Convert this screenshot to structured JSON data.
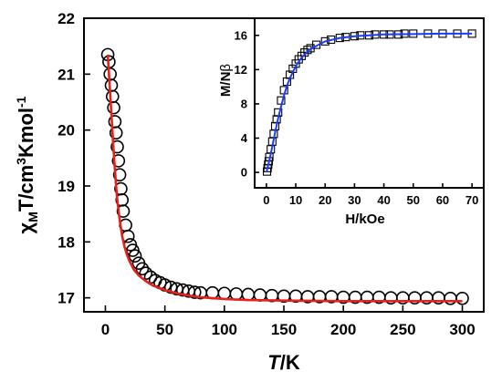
{
  "chart_data": [
    {
      "type": "scatter",
      "xlabel": {
        "italic": "T",
        "rest": "/K"
      },
      "ylabel": {
        "chi": "χ",
        "sub": "M",
        "mid": "T/cm",
        "sup3": "3",
        "mid2": "Kmol",
        "supm1": "-1"
      },
      "xlim": [
        -18,
        318
      ],
      "ylim": [
        16.75,
        22
      ],
      "xticks": [
        0,
        50,
        100,
        150,
        200,
        250,
        300
      ],
      "yticks": [
        17,
        18,
        19,
        20,
        21,
        22
      ],
      "grid": false,
      "series": [
        {
          "marker": "open-circle",
          "color": "#000000",
          "points": [
            [
              2,
              21.35
            ],
            [
              3,
              21.22
            ],
            [
              4,
              21.0
            ],
            [
              5,
              20.8
            ],
            [
              6,
              20.6
            ],
            [
              7,
              20.4
            ],
            [
              8,
              20.15
            ],
            [
              9,
              19.95
            ],
            [
              10,
              19.7
            ],
            [
              11,
              19.45
            ],
            [
              12,
              19.2
            ],
            [
              13,
              18.95
            ],
            [
              14,
              18.75
            ],
            [
              15,
              18.55
            ],
            [
              17,
              18.3
            ],
            [
              19,
              18.1
            ],
            [
              21,
              17.95
            ],
            [
              23,
              17.85
            ],
            [
              25,
              17.75
            ],
            [
              28,
              17.62
            ],
            [
              31,
              17.52
            ],
            [
              34,
              17.44
            ],
            [
              38,
              17.37
            ],
            [
              42,
              17.31
            ],
            [
              46,
              17.27
            ],
            [
              50,
              17.23
            ],
            [
              55,
              17.19
            ],
            [
              60,
              17.16
            ],
            [
              65,
              17.14
            ],
            [
              70,
              17.12
            ],
            [
              75,
              17.1
            ],
            [
              80,
              17.09
            ],
            [
              90,
              17.09
            ],
            [
              100,
              17.08
            ],
            [
              110,
              17.07
            ],
            [
              120,
              17.06
            ],
            [
              130,
              17.05
            ],
            [
              140,
              17.04
            ],
            [
              150,
              17.03
            ],
            [
              160,
              17.03
            ],
            [
              170,
              17.02
            ],
            [
              180,
              17.02
            ],
            [
              190,
              17.02
            ],
            [
              200,
              17.01
            ],
            [
              210,
              17.01
            ],
            [
              220,
              17.01
            ],
            [
              230,
              17.01
            ],
            [
              240,
              17.0
            ],
            [
              250,
              17.0
            ],
            [
              260,
              17.0
            ],
            [
              270,
              17.0
            ],
            [
              280,
              17.0
            ],
            [
              290,
              16.99
            ],
            [
              300,
              16.99
            ]
          ]
        },
        {
          "marker": "line",
          "color": "#e8201a",
          "points": [
            [
              2,
              21.35
            ],
            [
              3,
              21.0
            ],
            [
              4,
              20.65
            ],
            [
              5,
              20.3
            ],
            [
              6,
              19.95
            ],
            [
              7,
              19.6
            ],
            [
              8,
              19.3
            ],
            [
              9,
              19.0
            ],
            [
              10,
              18.75
            ],
            [
              12,
              18.4
            ],
            [
              14,
              18.12
            ],
            [
              16,
              17.92
            ],
            [
              18,
              17.78
            ],
            [
              20,
              17.67
            ],
            [
              24,
              17.5
            ],
            [
              28,
              17.4
            ],
            [
              32,
              17.33
            ],
            [
              36,
              17.27
            ],
            [
              40,
              17.22
            ],
            [
              50,
              17.14
            ],
            [
              60,
              17.08
            ],
            [
              70,
              17.04
            ],
            [
              80,
              17.01
            ],
            [
              100,
              16.98
            ],
            [
              120,
              16.96
            ],
            [
              150,
              16.95
            ],
            [
              200,
              16.94
            ],
            [
              250,
              16.94
            ],
            [
              300,
              16.94
            ]
          ]
        }
      ]
    },
    {
      "type": "scatter",
      "xlabel": "H/kOe",
      "ylabel": {
        "base": "M/N",
        "beta": "β"
      },
      "xlim": [
        -4,
        74
      ],
      "ylim": [
        -1.8,
        18
      ],
      "xticks": [
        0,
        10,
        20,
        30,
        40,
        50,
        60,
        70
      ],
      "yticks": [
        0,
        4,
        8,
        12,
        16
      ],
      "grid": false,
      "series": [
        {
          "marker": "open-square",
          "color": "#000000",
          "points": [
            [
              0.2,
              0.1
            ],
            [
              0.4,
              0.5
            ],
            [
              0.6,
              0.9
            ],
            [
              0.8,
              1.3
            ],
            [
              1.0,
              1.8
            ],
            [
              1.5,
              2.7
            ],
            [
              2.0,
              3.6
            ],
            [
              2.5,
              4.5
            ],
            [
              3.0,
              5.4
            ],
            [
              3.5,
              6.2
            ],
            [
              4.0,
              7.0
            ],
            [
              5.0,
              8.4
            ],
            [
              6.0,
              9.6
            ],
            [
              7.0,
              10.6
            ],
            [
              8.0,
              11.4
            ],
            [
              9.0,
              12.1
            ],
            [
              10.0,
              12.7
            ],
            [
              11.0,
              13.2
            ],
            [
              12.0,
              13.6
            ],
            [
              13.0,
              14.0
            ],
            [
              14.0,
              14.3
            ],
            [
              15.0,
              14.5
            ],
            [
              17.0,
              14.9
            ],
            [
              20.0,
              15.3
            ],
            [
              22.0,
              15.5
            ],
            [
              25.0,
              15.7
            ],
            [
              27.0,
              15.8
            ],
            [
              30.0,
              15.9
            ],
            [
              32.0,
              16.0
            ],
            [
              35.0,
              16.0
            ],
            [
              37.0,
              16.1
            ],
            [
              40.0,
              16.1
            ],
            [
              42.0,
              16.1
            ],
            [
              45.0,
              16.1
            ],
            [
              47.0,
              16.2
            ],
            [
              50.0,
              16.2
            ],
            [
              55.0,
              16.2
            ],
            [
              60.0,
              16.2
            ],
            [
              65.0,
              16.2
            ],
            [
              70.0,
              16.2
            ]
          ]
        },
        {
          "marker": "line",
          "color": "#1a3cff",
          "points": [
            [
              0,
              0
            ],
            [
              1,
              1.4
            ],
            [
              2,
              3.0
            ],
            [
              3,
              4.7
            ],
            [
              4,
              6.3
            ],
            [
              5,
              7.7
            ],
            [
              6,
              9.0
            ],
            [
              7,
              10.1
            ],
            [
              8,
              11.0
            ],
            [
              10,
              12.4
            ],
            [
              12,
              13.4
            ],
            [
              15,
              14.4
            ],
            [
              20,
              15.3
            ],
            [
              25,
              15.7
            ],
            [
              30,
              15.9
            ],
            [
              40,
              16.1
            ],
            [
              50,
              16.15
            ],
            [
              60,
              16.2
            ],
            [
              70,
              16.2
            ]
          ]
        }
      ]
    }
  ]
}
